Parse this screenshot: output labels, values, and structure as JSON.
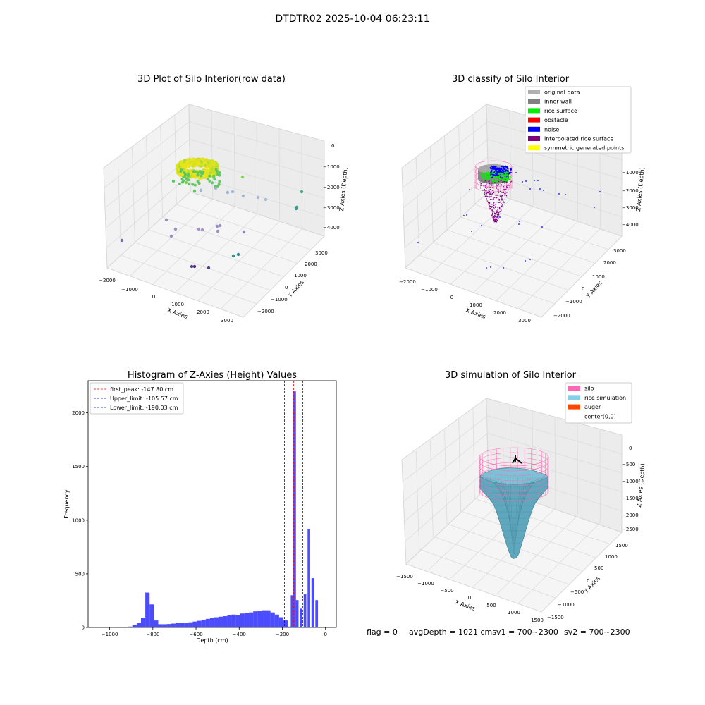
{
  "suptitle": "DTDTR02 2025-10-04 06:23:11",
  "footer": {
    "flag": "flag = 0",
    "avg": "avgDepth = 1021 cmsv1 = 700~2300",
    "sv2": "sv2 = 700~2300"
  },
  "panels": {
    "raw": {
      "title": "3D Plot of Silo Interior(row data)",
      "xlabel": "X Axies",
      "ylabel": "Y Axies",
      "zlabel": "Z Axies (Depth)",
      "xticks": [
        "−2000",
        "−1000",
        "0",
        "1000",
        "2000",
        "3000"
      ],
      "yticks": [
        "−2000",
        "−1000",
        "0",
        "1000",
        "2000",
        "3000"
      ],
      "zticks": [
        "0",
        "−1000",
        "−2000",
        "−3000",
        "−4000"
      ]
    },
    "classify": {
      "title": "3D classify of Silo Interior",
      "xlabel": "X Axies",
      "ylabel": "Y Axies",
      "zlabel": "Z Axies (Depth)",
      "xticks": [
        "−2000",
        "−1000",
        "0",
        "1000",
        "2000",
        "3000"
      ],
      "yticks": [
        "−2000",
        "−1000",
        "0",
        "1000",
        "2000",
        "3000"
      ],
      "zticks": [
        "−1000",
        "−2000",
        "−3000",
        "−4000"
      ],
      "legend": [
        {
          "label": "original data",
          "color": "#b0b0b0"
        },
        {
          "label": "inner wall",
          "color": "#808080"
        },
        {
          "label": "rice surface",
          "color": "#00ee00"
        },
        {
          "label": "obstacle",
          "color": "#ff0000"
        },
        {
          "label": "noise",
          "color": "#0000ff"
        },
        {
          "label": "interpolated rice surface",
          "color": "#800080"
        },
        {
          "label": "symmetric generated points",
          "color": "#ffff00"
        }
      ]
    },
    "simulation": {
      "title": "3D simulation of Silo Interior",
      "xlabel": "X Axies",
      "ylabel": "Y Axies",
      "zlabel": "Z Axies (Depth)",
      "xticks": [
        "−1500",
        "−1000",
        "−500",
        "0",
        "500",
        "1000",
        "1500"
      ],
      "yticks": [
        "−1500",
        "−1000",
        "−500",
        "0",
        "500",
        "1000",
        "1500"
      ],
      "zticks": [
        "0",
        "−500",
        "−1000",
        "−1500",
        "−2000",
        "−2500"
      ],
      "legend": [
        {
          "label": "silo",
          "color": "#ff69b4"
        },
        {
          "label": "rice simulation",
          "color": "#87ceeb"
        },
        {
          "label": "auger",
          "color": "#ff4500"
        },
        {
          "label": "center(0,0)",
          "color": "#ffffff"
        }
      ]
    }
  },
  "chart_data": {
    "type": "bar",
    "title": "Histogram of Z-Axies (Height) Values",
    "xlabel": "Depth (cm)",
    "ylabel": "Frequency",
    "xlim": [
      -1100,
      50
    ],
    "ylim": [
      0,
      2300
    ],
    "xticks": [
      -1000,
      -800,
      -600,
      -400,
      -200,
      0
    ],
    "yticks": [
      0,
      500,
      1000,
      1500,
      2000
    ],
    "bar_color": "#0000ff",
    "bin_width": 20,
    "bins": [
      {
        "x": -925,
        "v": 3
      },
      {
        "x": -905,
        "v": 8
      },
      {
        "x": -885,
        "v": 20
      },
      {
        "x": -865,
        "v": 45
      },
      {
        "x": -845,
        "v": 90
      },
      {
        "x": -825,
        "v": 325
      },
      {
        "x": -805,
        "v": 215
      },
      {
        "x": -785,
        "v": 65
      },
      {
        "x": -765,
        "v": 30
      },
      {
        "x": -745,
        "v": 30
      },
      {
        "x": -725,
        "v": 32
      },
      {
        "x": -705,
        "v": 36
      },
      {
        "x": -685,
        "v": 40
      },
      {
        "x": -665,
        "v": 45
      },
      {
        "x": -645,
        "v": 44
      },
      {
        "x": -625,
        "v": 48
      },
      {
        "x": -605,
        "v": 55
      },
      {
        "x": -585,
        "v": 62
      },
      {
        "x": -565,
        "v": 70
      },
      {
        "x": -545,
        "v": 80
      },
      {
        "x": -525,
        "v": 88
      },
      {
        "x": -505,
        "v": 95
      },
      {
        "x": -485,
        "v": 100
      },
      {
        "x": -465,
        "v": 105
      },
      {
        "x": -445,
        "v": 112
      },
      {
        "x": -425,
        "v": 120
      },
      {
        "x": -405,
        "v": 118
      },
      {
        "x": -385,
        "v": 130
      },
      {
        "x": -365,
        "v": 135
      },
      {
        "x": -345,
        "v": 140
      },
      {
        "x": -325,
        "v": 150
      },
      {
        "x": -305,
        "v": 155
      },
      {
        "x": -285,
        "v": 160
      },
      {
        "x": -265,
        "v": 160
      },
      {
        "x": -245,
        "v": 140
      },
      {
        "x": -225,
        "v": 120
      },
      {
        "x": -205,
        "v": 95
      },
      {
        "x": -185,
        "v": 65
      },
      {
        "x": -165,
        "v": 8
      },
      {
        "x": -155,
        "v": 300
      },
      {
        "x": -143,
        "v": 2200
      },
      {
        "x": -131,
        "v": 255
      },
      {
        "x": -113,
        "v": 175
      },
      {
        "x": -95,
        "v": 310
      },
      {
        "x": -77,
        "v": 920
      },
      {
        "x": -59,
        "v": 460
      },
      {
        "x": -41,
        "v": 255
      }
    ],
    "lines": [
      {
        "label": "first_peak: -147.80 cm",
        "x": -147.8,
        "color": "#ff0000"
      },
      {
        "label": "Upper_limit: -105.57 cm",
        "x": -105.57,
        "color": "#0000ff"
      },
      {
        "label": "Lower_limit: -190.03 cm",
        "x": -190.03,
        "color": "#0000ff"
      }
    ]
  }
}
